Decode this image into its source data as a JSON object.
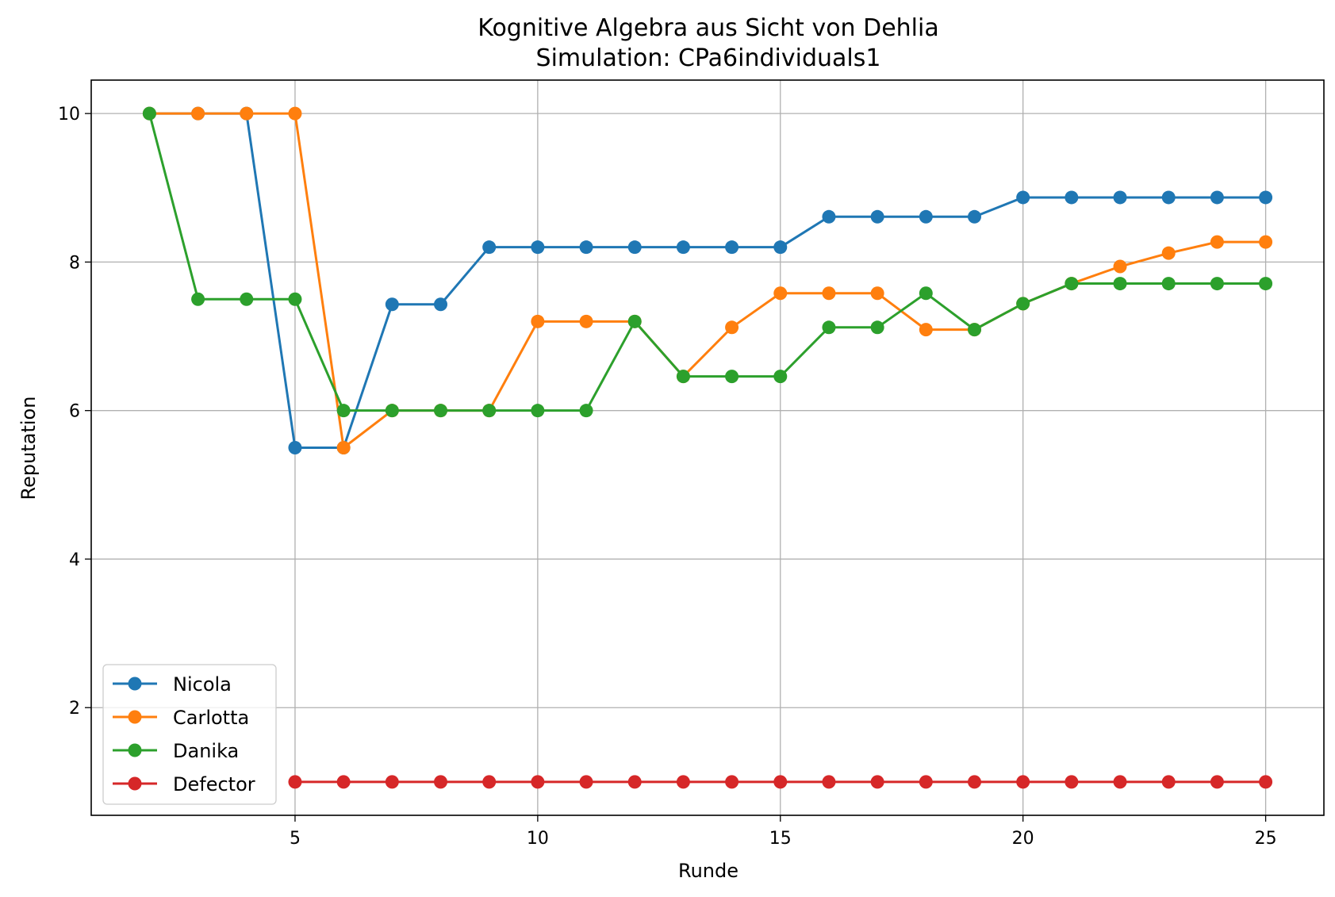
{
  "chart_data": {
    "type": "line",
    "title": "Kognitive Algebra aus Sicht von Dehlia",
    "subtitle": "Simulation: CPa6individuals1",
    "xlabel": "Runde",
    "ylabel": "Reputation",
    "xlim": [
      0.8,
      26.2
    ],
    "ylim": [
      0.55,
      10.45
    ],
    "xticks": [
      5,
      10,
      15,
      20,
      25
    ],
    "yticks": [
      2,
      4,
      6,
      8,
      10
    ],
    "grid": true,
    "legend_position": "lower-left",
    "series": [
      {
        "name": "Nicola",
        "color": "#1f77b4",
        "x": [
          2,
          3,
          4,
          5,
          6,
          7,
          8,
          9,
          10,
          11,
          12,
          13,
          14,
          15,
          16,
          17,
          18,
          19,
          20,
          21,
          22,
          23,
          24,
          25
        ],
        "y": [
          10,
          10,
          10,
          5.5,
          5.5,
          7.43,
          7.43,
          8.2,
          8.2,
          8.2,
          8.2,
          8.2,
          8.2,
          8.2,
          8.61,
          8.61,
          8.61,
          8.61,
          8.87,
          8.87,
          8.87,
          8.87,
          8.87,
          8.87
        ]
      },
      {
        "name": "Carlotta",
        "color": "#ff7f0e",
        "x": [
          2,
          3,
          4,
          5,
          6,
          7,
          8,
          9,
          10,
          11,
          12,
          13,
          14,
          15,
          16,
          17,
          18,
          19,
          20,
          21,
          22,
          23,
          24,
          25
        ],
        "y": [
          10,
          10,
          10,
          10,
          5.5,
          6,
          6,
          6,
          7.2,
          7.2,
          7.2,
          6.46,
          7.12,
          7.58,
          7.58,
          7.58,
          7.09,
          7.09,
          7.44,
          7.71,
          7.94,
          8.12,
          8.27,
          8.27
        ]
      },
      {
        "name": "Danika",
        "color": "#2ca02c",
        "x": [
          2,
          3,
          4,
          5,
          6,
          7,
          8,
          9,
          10,
          11,
          12,
          13,
          14,
          15,
          16,
          17,
          18,
          19,
          20,
          21,
          22,
          23,
          24,
          25
        ],
        "y": [
          10,
          7.5,
          7.5,
          7.5,
          6,
          6,
          6,
          6,
          6,
          6,
          7.2,
          6.46,
          6.46,
          6.46,
          7.12,
          7.12,
          7.58,
          7.09,
          7.44,
          7.71,
          7.71,
          7.71,
          7.71,
          7.71
        ]
      },
      {
        "name": "Defector",
        "color": "#d62728",
        "x": [
          5,
          6,
          7,
          8,
          9,
          10,
          11,
          12,
          13,
          14,
          15,
          16,
          17,
          18,
          19,
          20,
          21,
          22,
          23,
          24,
          25
        ],
        "y": [
          1,
          1,
          1,
          1,
          1,
          1,
          1,
          1,
          1,
          1,
          1,
          1,
          1,
          1,
          1,
          1,
          1,
          1,
          1,
          1,
          1
        ]
      }
    ]
  }
}
